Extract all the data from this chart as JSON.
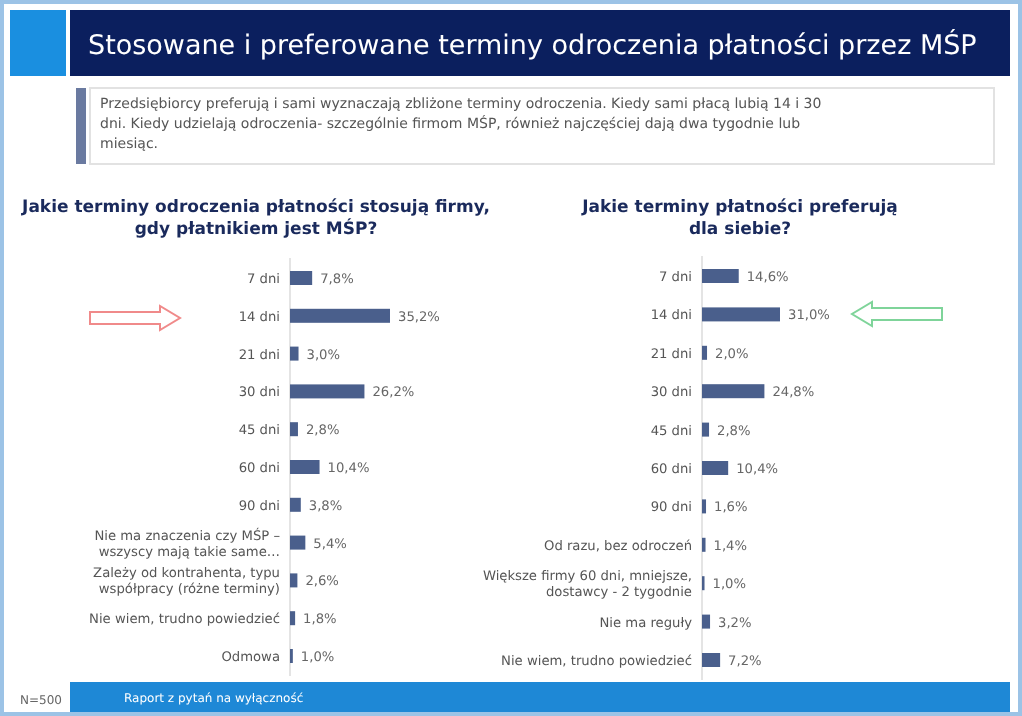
{
  "chart_data": [
    {
      "type": "other",
      "title": "Stosowane i preferowane terminy odroczenia płatności przez MŚP",
      "subtitle": "Przedsiębiorcy preferują i sami wyznaczają zbliżone terminy odroczenia. Kiedy sami płacą lubią 14 i 30 dni. Kiedy udzielają odroczenia- szczególnie firmom MŚP, również najczęściej dają dwa tygodnie lub miesiąc.",
      "annotations": [
        "N=500",
        "Raport z pytań na wyłączność"
      ]
    },
    {
      "type": "bar",
      "orientation": "horizontal",
      "title": "Jakie terminy odroczenia płatności stosują firmy,\ngdy płatnikiem jest MŚP?",
      "categories": [
        "7 dni",
        "14 dni",
        "21 dni",
        "30 dni",
        "45 dni",
        "60 dni",
        "90 dni",
        "Nie ma znaczenia czy MŚP –\nwszyscy mają takie same…",
        "Zależy od kontrahenta, typu\nwspółpracy (różne terminy)",
        "Nie wiem, trudno powiedzieć",
        "Odmowa"
      ],
      "values": [
        7.8,
        35.2,
        3.0,
        26.2,
        2.8,
        10.4,
        3.8,
        5.4,
        2.6,
        1.8,
        1.0
      ],
      "value_labels": [
        "7,8%",
        "35,2%",
        "3,0%",
        "26,2%",
        "2,8%",
        "10,4%",
        "3,8%",
        "5,4%",
        "2,6%",
        "1,8%",
        "1,0%"
      ],
      "color": "#4a5f8c"
    },
    {
      "type": "bar",
      "orientation": "horizontal",
      "title": "Jakie terminy płatności preferują\ndla siebie?",
      "categories": [
        "7 dni",
        "14 dni",
        "21 dni",
        "30 dni",
        "45 dni",
        "60 dni",
        "90 dni",
        "Od razu, bez odroczeń",
        "Większe firmy 60 dni, mniejsze,\ndostawcy - 2 tygodnie",
        "Nie ma reguły",
        "Nie wiem, trudno powiedzieć"
      ],
      "values": [
        14.6,
        31.0,
        2.0,
        24.8,
        2.8,
        10.4,
        1.6,
        1.4,
        1.0,
        3.2,
        7.2
      ],
      "value_labels": [
        "14,6%",
        "31,0%",
        "2,0%",
        "24,8%",
        "2,8%",
        "10,4%",
        "1,6%",
        "1,4%",
        "1,0%",
        "3,2%",
        "7,2%"
      ],
      "color": "#4a5f8c"
    }
  ]
}
